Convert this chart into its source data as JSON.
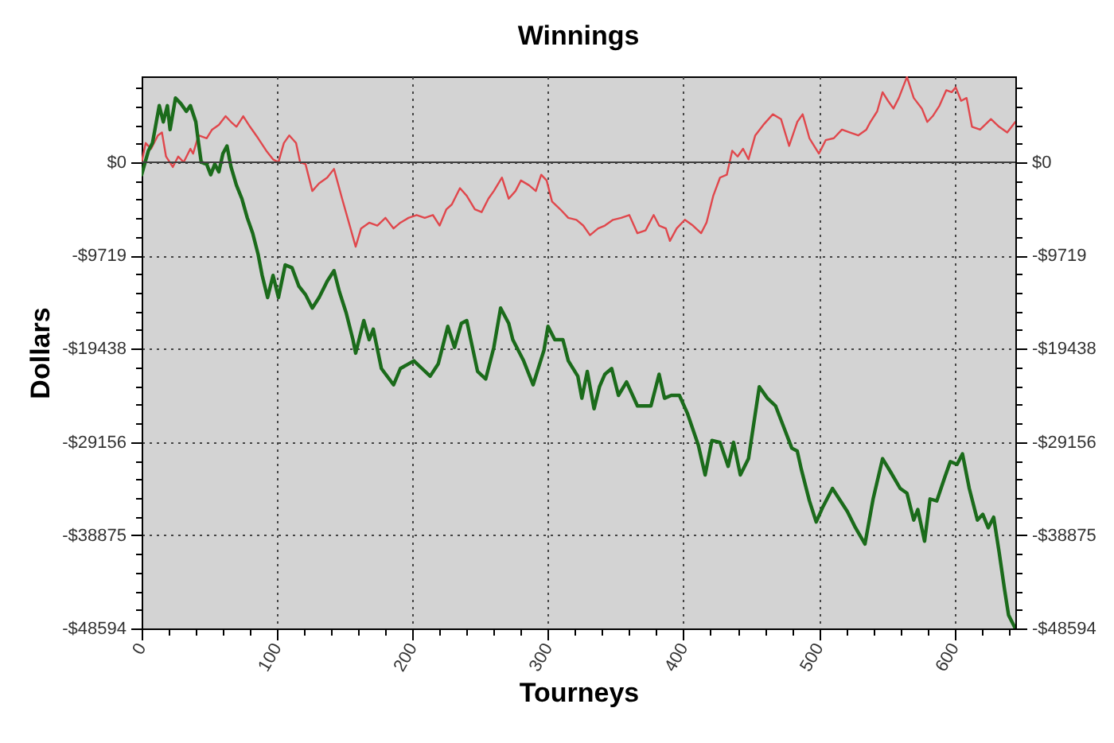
{
  "chart_data": {
    "type": "line",
    "title": "Winnings",
    "xlabel": "Tourneys",
    "ylabel": "Dollars",
    "xlim": [
      0,
      645
    ],
    "xticks": [
      0,
      {
        "value": 20,
        "label": null
      },
      {
        "value": 40,
        "label": null
      },
      {
        "value": 60,
        "label": null
      },
      {
        "value": 80,
        "label": null
      },
      100,
      {
        "value": 120,
        "label": null
      },
      {
        "value": 140,
        "label": null
      },
      {
        "value": 160,
        "label": null
      },
      {
        "value": 180,
        "label": null
      },
      200,
      {
        "value": 220,
        "label": null
      },
      {
        "value": 240,
        "label": null
      },
      {
        "value": 260,
        "label": null
      },
      {
        "value": 280,
        "label": null
      },
      300,
      {
        "value": 320,
        "label": null
      },
      {
        "value": 340,
        "label": null
      },
      {
        "value": 360,
        "label": null
      },
      {
        "value": 380,
        "label": null
      },
      400,
      {
        "value": 420,
        "label": null
      },
      {
        "value": 440,
        "label": null
      },
      {
        "value": 460,
        "label": null
      },
      {
        "value": 480,
        "label": null
      },
      500,
      {
        "value": 520,
        "label": null
      },
      {
        "value": 540,
        "label": null
      },
      {
        "value": 560,
        "label": null
      },
      {
        "value": 580,
        "label": null
      },
      600,
      {
        "value": 620,
        "label": null
      },
      {
        "value": 640,
        "label": null
      }
    ],
    "ylim": [
      -48594,
      8950
    ],
    "yticks": [
      {
        "value": 7775,
        "label": null
      },
      {
        "value": 5831,
        "label": null
      },
      {
        "value": 3888,
        "label": null
      },
      {
        "value": 1944,
        "label": null
      },
      {
        "value": 0,
        "label": "$0"
      },
      {
        "value": -1944,
        "label": null
      },
      {
        "value": -3888,
        "label": null
      },
      {
        "value": -5831,
        "label": null
      },
      {
        "value": -7775,
        "label": null
      },
      {
        "value": -9719,
        "label": "-$9719"
      },
      {
        "value": -11663,
        "label": null
      },
      {
        "value": -13606,
        "label": null
      },
      {
        "value": -15550,
        "label": null
      },
      {
        "value": -17494,
        "label": null
      },
      {
        "value": -19438,
        "label": "-$19438"
      },
      {
        "value": -21381,
        "label": null
      },
      {
        "value": -23325,
        "label": null
      },
      {
        "value": -25269,
        "label": null
      },
      {
        "value": -27213,
        "label": null
      },
      {
        "value": -29156,
        "label": "-$29156"
      },
      {
        "value": -31100,
        "label": null
      },
      {
        "value": -33044,
        "label": null
      },
      {
        "value": -34988,
        "label": null
      },
      {
        "value": -36931,
        "label": null
      },
      {
        "value": -38875,
        "label": "-$38875"
      },
      {
        "value": -40819,
        "label": null
      },
      {
        "value": -42763,
        "label": null
      },
      {
        "value": -44706,
        "label": null
      },
      {
        "value": -46650,
        "label": null
      },
      {
        "value": -48594,
        "label": "-$48594"
      }
    ],
    "y2lim": [
      -48594,
      8950
    ],
    "y2ticks": [
      {
        "value": 7775,
        "label": null
      },
      {
        "value": 5831,
        "label": null
      },
      {
        "value": 3888,
        "label": null
      },
      {
        "value": 1944,
        "label": null
      },
      {
        "value": 0,
        "label": "$0"
      },
      {
        "value": -1944,
        "label": null
      },
      {
        "value": -3888,
        "label": null
      },
      {
        "value": -5831,
        "label": null
      },
      {
        "value": -7775,
        "label": null
      },
      {
        "value": -9719,
        "label": "-$9719"
      },
      {
        "value": -11663,
        "label": null
      },
      {
        "value": -13606,
        "label": null
      },
      {
        "value": -15550,
        "label": null
      },
      {
        "value": -17494,
        "label": null
      },
      {
        "value": -19438,
        "label": "-$19438"
      },
      {
        "value": -21381,
        "label": null
      },
      {
        "value": -23325,
        "label": null
      },
      {
        "value": -25269,
        "label": null
      },
      {
        "value": -27213,
        "label": null
      },
      {
        "value": -29156,
        "label": "-$29156"
      },
      {
        "value": -31100,
        "label": null
      },
      {
        "value": -33044,
        "label": null
      },
      {
        "value": -34988,
        "label": null
      },
      {
        "value": -36931,
        "label": null
      },
      {
        "value": -38875,
        "label": "-$38875"
      },
      {
        "value": -40819,
        "label": null
      },
      {
        "value": -42763,
        "label": null
      },
      {
        "value": -44706,
        "label": null
      },
      {
        "value": -46650,
        "label": null
      },
      {
        "value": -48594,
        "label": "-$48594"
      }
    ],
    "grid": true,
    "ref_lines": [
      {
        "axis": "y",
        "value": 0,
        "color": "#404040"
      }
    ],
    "series": [
      {
        "color": "#e0474c",
        "x": [
          0,
          3,
          7,
          12,
          15,
          18,
          23,
          27,
          31,
          36,
          38,
          42,
          48,
          52,
          57,
          62,
          66,
          70,
          75,
          80,
          86,
          92,
          97,
          101,
          105,
          109,
          114,
          117,
          121,
          126,
          131,
          137,
          142,
          148,
          153,
          158,
          162,
          168,
          174,
          180,
          186,
          191,
          197,
          203,
          209,
          215,
          220,
          225,
          229,
          235,
          240,
          246,
          251,
          256,
          260,
          266,
          271,
          276,
          280,
          286,
          291,
          295,
          299,
          303,
          309,
          315,
          321,
          326,
          331,
          337,
          342,
          348,
          354,
          360,
          366,
          372,
          378,
          382,
          387,
          390,
          395,
          401,
          407,
          413,
          417,
          422,
          427,
          432,
          436,
          440,
          444,
          448,
          453,
          459,
          466,
          472,
          478,
          484,
          488,
          493,
          500,
          505,
          511,
          517,
          523,
          529,
          535,
          538,
          543,
          547,
          551,
          555,
          559,
          565,
          570,
          576,
          580,
          584,
          589,
          594,
          598,
          601,
          605,
          609,
          613,
          619,
          627,
          633,
          639,
          645
        ],
        "values": [
          0,
          2000,
          1400,
          2800,
          3100,
          600,
          -500,
          600,
          0,
          1400,
          900,
          2800,
          2500,
          3400,
          3900,
          4800,
          4200,
          3700,
          4800,
          3700,
          2500,
          1200,
          300,
          0,
          2000,
          2800,
          2000,
          0,
          -200,
          -3000,
          -2200,
          -1600,
          -700,
          -3800,
          -6300,
          -8800,
          -6900,
          -6300,
          -6600,
          -5800,
          -6900,
          -6300,
          -5800,
          -5500,
          -5800,
          -5500,
          -6600,
          -4900,
          -4400,
          -2700,
          -3500,
          -4900,
          -5200,
          -3800,
          -3000,
          -1600,
          -3800,
          -3000,
          -1900,
          -2400,
          -3000,
          -1300,
          -1900,
          -4100,
          -4900,
          -5800,
          -6000,
          -6600,
          -7600,
          -6900,
          -6600,
          -6000,
          -5800,
          -5500,
          -7400,
          -7100,
          -5500,
          -6600,
          -6900,
          -8200,
          -6900,
          -6000,
          -6600,
          -7400,
          -6300,
          -3500,
          -1600,
          -1300,
          1200,
          600,
          1400,
          300,
          2800,
          3900,
          5000,
          4500,
          1700,
          4200,
          5000,
          2500,
          900,
          2300,
          2500,
          3400,
          3100,
          2800,
          3400,
          4200,
          5300,
          7300,
          6400,
          5600,
          6700,
          8900,
          6700,
          5600,
          4200,
          4800,
          5900,
          7500,
          7300,
          7800,
          6400,
          6700,
          3700,
          3400,
          4500,
          3700,
          3100,
          4200
        ]
      },
      {
        "color": "#1b6b1b",
        "x": [
          0,
          5,
          8,
          13,
          16,
          19,
          21,
          25,
          29,
          33,
          36,
          40,
          42,
          44,
          48,
          51,
          54,
          57,
          60,
          63,
          66,
          70,
          74,
          78,
          82,
          86,
          89,
          93,
          97,
          101,
          106,
          111,
          116,
          121,
          126,
          131,
          137,
          142,
          146,
          151,
          156,
          158,
          164,
          168,
          171,
          177,
          186,
          191,
          201,
          207,
          213,
          219,
          226,
          231,
          236,
          240,
          248,
          254,
          260,
          265,
          271,
          274,
          282,
          289,
          297,
          300,
          305,
          311,
          315,
          322,
          325,
          329,
          334,
          338,
          342,
          347,
          352,
          358,
          366,
          376,
          382,
          386,
          391,
          397,
          403,
          411,
          416,
          421,
          427,
          433,
          437,
          442,
          448,
          456,
          462,
          468,
          474,
          480,
          484,
          487,
          493,
          498,
          503,
          510,
          515,
          521,
          527,
          534,
          540,
          547,
          553,
          560,
          565,
          570,
          573,
          578,
          582,
          587,
          593,
          597,
          602,
          606,
          611,
          617,
          621,
          625,
          629,
          633,
          637,
          640,
          645
        ],
        "values": [
          -1300,
          1200,
          2000,
          5900,
          4200,
          5900,
          3400,
          6700,
          6100,
          5300,
          5900,
          4200,
          2000,
          0,
          -200,
          -1300,
          -200,
          -1000,
          900,
          1700,
          -500,
          -2400,
          -3800,
          -5800,
          -7400,
          -9600,
          -11800,
          -14100,
          -11800,
          -14100,
          -10700,
          -11000,
          -12900,
          -13800,
          -15200,
          -14100,
          -12400,
          -11300,
          -13500,
          -15700,
          -18500,
          -19900,
          -16500,
          -18500,
          -17400,
          -21500,
          -23200,
          -21500,
          -20700,
          -21500,
          -22300,
          -21000,
          -17100,
          -19300,
          -16800,
          -16500,
          -21800,
          -22600,
          -19300,
          -15200,
          -16800,
          -18500,
          -20700,
          -23200,
          -19600,
          -17100,
          -18500,
          -18500,
          -20700,
          -22300,
          -24600,
          -21800,
          -25700,
          -23400,
          -22100,
          -21500,
          -24300,
          -22900,
          -25400,
          -25400,
          -22100,
          -24600,
          -24300,
          -24300,
          -26200,
          -29500,
          -32600,
          -29000,
          -29200,
          -31700,
          -29200,
          -32600,
          -30900,
          -23400,
          -24600,
          -25400,
          -27600,
          -29800,
          -30100,
          -32000,
          -35300,
          -37500,
          -35900,
          -34000,
          -35100,
          -36400,
          -38100,
          -39800,
          -35100,
          -30900,
          -32300,
          -34000,
          -34500,
          -37300,
          -36200,
          -39500,
          -35100,
          -35300,
          -32800,
          -31200,
          -31500,
          -30400,
          -34000,
          -37300,
          -36700,
          -38100,
          -37000,
          -40600,
          -44500,
          -47200,
          -48594
        ]
      }
    ]
  }
}
